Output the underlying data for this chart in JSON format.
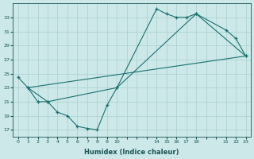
{
  "bg_color": "#cce8e8",
  "grid_color": "#aacfcf",
  "line_color": "#1a7070",
  "xlabel": "Humidex (Indice chaleur)",
  "tick_labels": [
    "0",
    "1",
    "2",
    "3",
    "4",
    "5",
    "6",
    "7",
    "8",
    "9",
    "10",
    "",
    "",
    "",
    "14",
    "15",
    "16",
    "17",
    "18",
    "",
    "",
    "21",
    "22",
    "23"
  ],
  "xlim": [
    -0.5,
    23.5
  ],
  "ylim": [
    16.0,
    35.0
  ],
  "yticks": [
    17,
    19,
    21,
    23,
    25,
    27,
    29,
    31,
    33
  ],
  "curve1_ix": [
    0,
    1,
    2,
    3,
    4,
    5,
    6,
    7,
    8,
    9,
    10,
    14,
    15,
    16,
    17,
    18,
    21,
    22,
    23
  ],
  "curve1_y": [
    24.5,
    23,
    21,
    21,
    19.5,
    19,
    17.5,
    17.2,
    17,
    20.5,
    23,
    34.2,
    33.5,
    33.0,
    33.0,
    33.5,
    31.2,
    30.0,
    27.5
  ],
  "curve2_ix": [
    1,
    3,
    10,
    18,
    23
  ],
  "curve2_y": [
    23,
    21,
    23,
    33.5,
    27.5
  ],
  "curve3_ix": [
    1,
    23
  ],
  "curve3_y": [
    23,
    27.5
  ]
}
